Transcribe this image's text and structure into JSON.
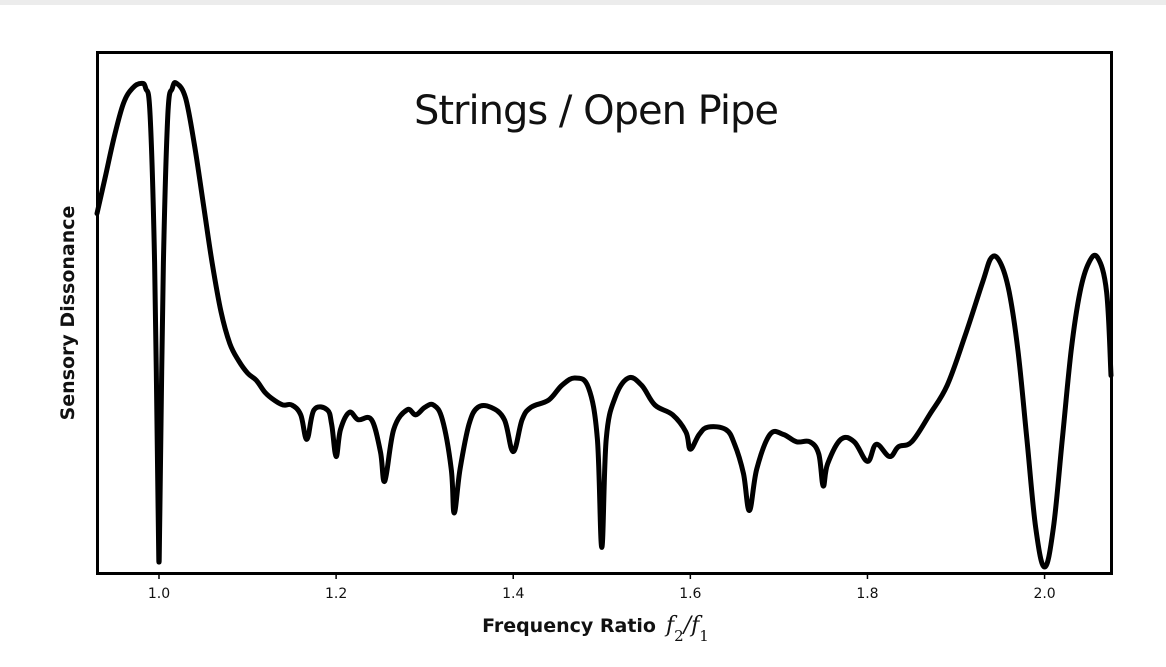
{
  "chart_data": {
    "type": "line",
    "title": "Strings / Open Pipe",
    "xlabel": "Frequency Ratio",
    "xlabel_math": {
      "base": "f",
      "sub_num": "2",
      "slash": "/",
      "sub_den": "1"
    },
    "ylabel": "Sensory Dissonance",
    "xlim": [
      0.93,
      2.075
    ],
    "ylim": [
      0,
      1
    ],
    "xticks": [
      1.0,
      1.2,
      1.4,
      1.6,
      1.8,
      2.0
    ],
    "xtick_labels": [
      "1.0",
      "1.2",
      "1.4",
      "1.6",
      "1.8",
      "2.0"
    ],
    "yticks": [],
    "grid": false,
    "line_color": "#000000",
    "series": [
      {
        "points": [
          [
            0.93,
            0.72
          ],
          [
            0.94,
            0.8
          ],
          [
            0.95,
            0.88
          ],
          [
            0.96,
            0.945
          ],
          [
            0.97,
            0.975
          ],
          [
            0.98,
            0.985
          ],
          [
            0.985,
            0.975
          ],
          [
            0.99,
            0.92
          ],
          [
            0.995,
            0.62
          ],
          [
            0.999,
            0.12
          ],
          [
            1.0,
            0.01
          ],
          [
            1.001,
            0.12
          ],
          [
            1.005,
            0.62
          ],
          [
            1.01,
            0.92
          ],
          [
            1.015,
            0.975
          ],
          [
            1.02,
            0.985
          ],
          [
            1.03,
            0.955
          ],
          [
            1.04,
            0.86
          ],
          [
            1.05,
            0.74
          ],
          [
            1.06,
            0.62
          ],
          [
            1.07,
            0.52
          ],
          [
            1.08,
            0.455
          ],
          [
            1.09,
            0.42
          ],
          [
            1.1,
            0.395
          ],
          [
            1.11,
            0.38
          ],
          [
            1.12,
            0.355
          ],
          [
            1.13,
            0.34
          ],
          [
            1.14,
            0.33
          ],
          [
            1.15,
            0.33
          ],
          [
            1.16,
            0.31
          ],
          [
            1.167,
            0.26
          ],
          [
            1.175,
            0.32
          ],
          [
            1.19,
            0.32
          ],
          [
            1.195,
            0.29
          ],
          [
            1.2,
            0.225
          ],
          [
            1.205,
            0.28
          ],
          [
            1.215,
            0.315
          ],
          [
            1.225,
            0.3
          ],
          [
            1.24,
            0.3
          ],
          [
            1.25,
            0.235
          ],
          [
            1.255,
            0.175
          ],
          [
            1.265,
            0.28
          ],
          [
            1.28,
            0.32
          ],
          [
            1.29,
            0.31
          ],
          [
            1.3,
            0.325
          ],
          [
            1.31,
            0.33
          ],
          [
            1.32,
            0.3
          ],
          [
            1.33,
            0.2
          ],
          [
            1.3333,
            0.11
          ],
          [
            1.34,
            0.2
          ],
          [
            1.35,
            0.29
          ],
          [
            1.36,
            0.325
          ],
          [
            1.375,
            0.325
          ],
          [
            1.39,
            0.3
          ],
          [
            1.4,
            0.235
          ],
          [
            1.41,
            0.3
          ],
          [
            1.42,
            0.325
          ],
          [
            1.44,
            0.34
          ],
          [
            1.455,
            0.37
          ],
          [
            1.47,
            0.385
          ],
          [
            1.485,
            0.365
          ],
          [
            1.495,
            0.26
          ],
          [
            1.5,
            0.04
          ],
          [
            1.505,
            0.26
          ],
          [
            1.515,
            0.345
          ],
          [
            1.53,
            0.385
          ],
          [
            1.545,
            0.37
          ],
          [
            1.56,
            0.33
          ],
          [
            1.58,
            0.31
          ],
          [
            1.595,
            0.275
          ],
          [
            1.6,
            0.24
          ],
          [
            1.61,
            0.27
          ],
          [
            1.62,
            0.285
          ],
          [
            1.64,
            0.28
          ],
          [
            1.65,
            0.25
          ],
          [
            1.66,
            0.19
          ],
          [
            1.6667,
            0.115
          ],
          [
            1.675,
            0.2
          ],
          [
            1.69,
            0.27
          ],
          [
            1.705,
            0.27
          ],
          [
            1.72,
            0.255
          ],
          [
            1.735,
            0.255
          ],
          [
            1.745,
            0.23
          ],
          [
            1.75,
            0.165
          ],
          [
            1.755,
            0.21
          ],
          [
            1.77,
            0.26
          ],
          [
            1.785,
            0.255
          ],
          [
            1.8,
            0.215
          ],
          [
            1.81,
            0.25
          ],
          [
            1.825,
            0.225
          ],
          [
            1.835,
            0.245
          ],
          [
            1.85,
            0.255
          ],
          [
            1.87,
            0.31
          ],
          [
            1.89,
            0.37
          ],
          [
            1.91,
            0.47
          ],
          [
            1.93,
            0.58
          ],
          [
            1.94,
            0.63
          ],
          [
            1.95,
            0.62
          ],
          [
            1.96,
            0.56
          ],
          [
            1.97,
            0.44
          ],
          [
            1.98,
            0.26
          ],
          [
            1.99,
            0.08
          ],
          [
            2.0,
            0.0
          ],
          [
            2.01,
            0.08
          ],
          [
            2.02,
            0.26
          ],
          [
            2.03,
            0.44
          ],
          [
            2.04,
            0.56
          ],
          [
            2.05,
            0.62
          ],
          [
            2.06,
            0.63
          ],
          [
            2.07,
            0.56
          ],
          [
            2.075,
            0.39
          ]
        ]
      }
    ]
  }
}
